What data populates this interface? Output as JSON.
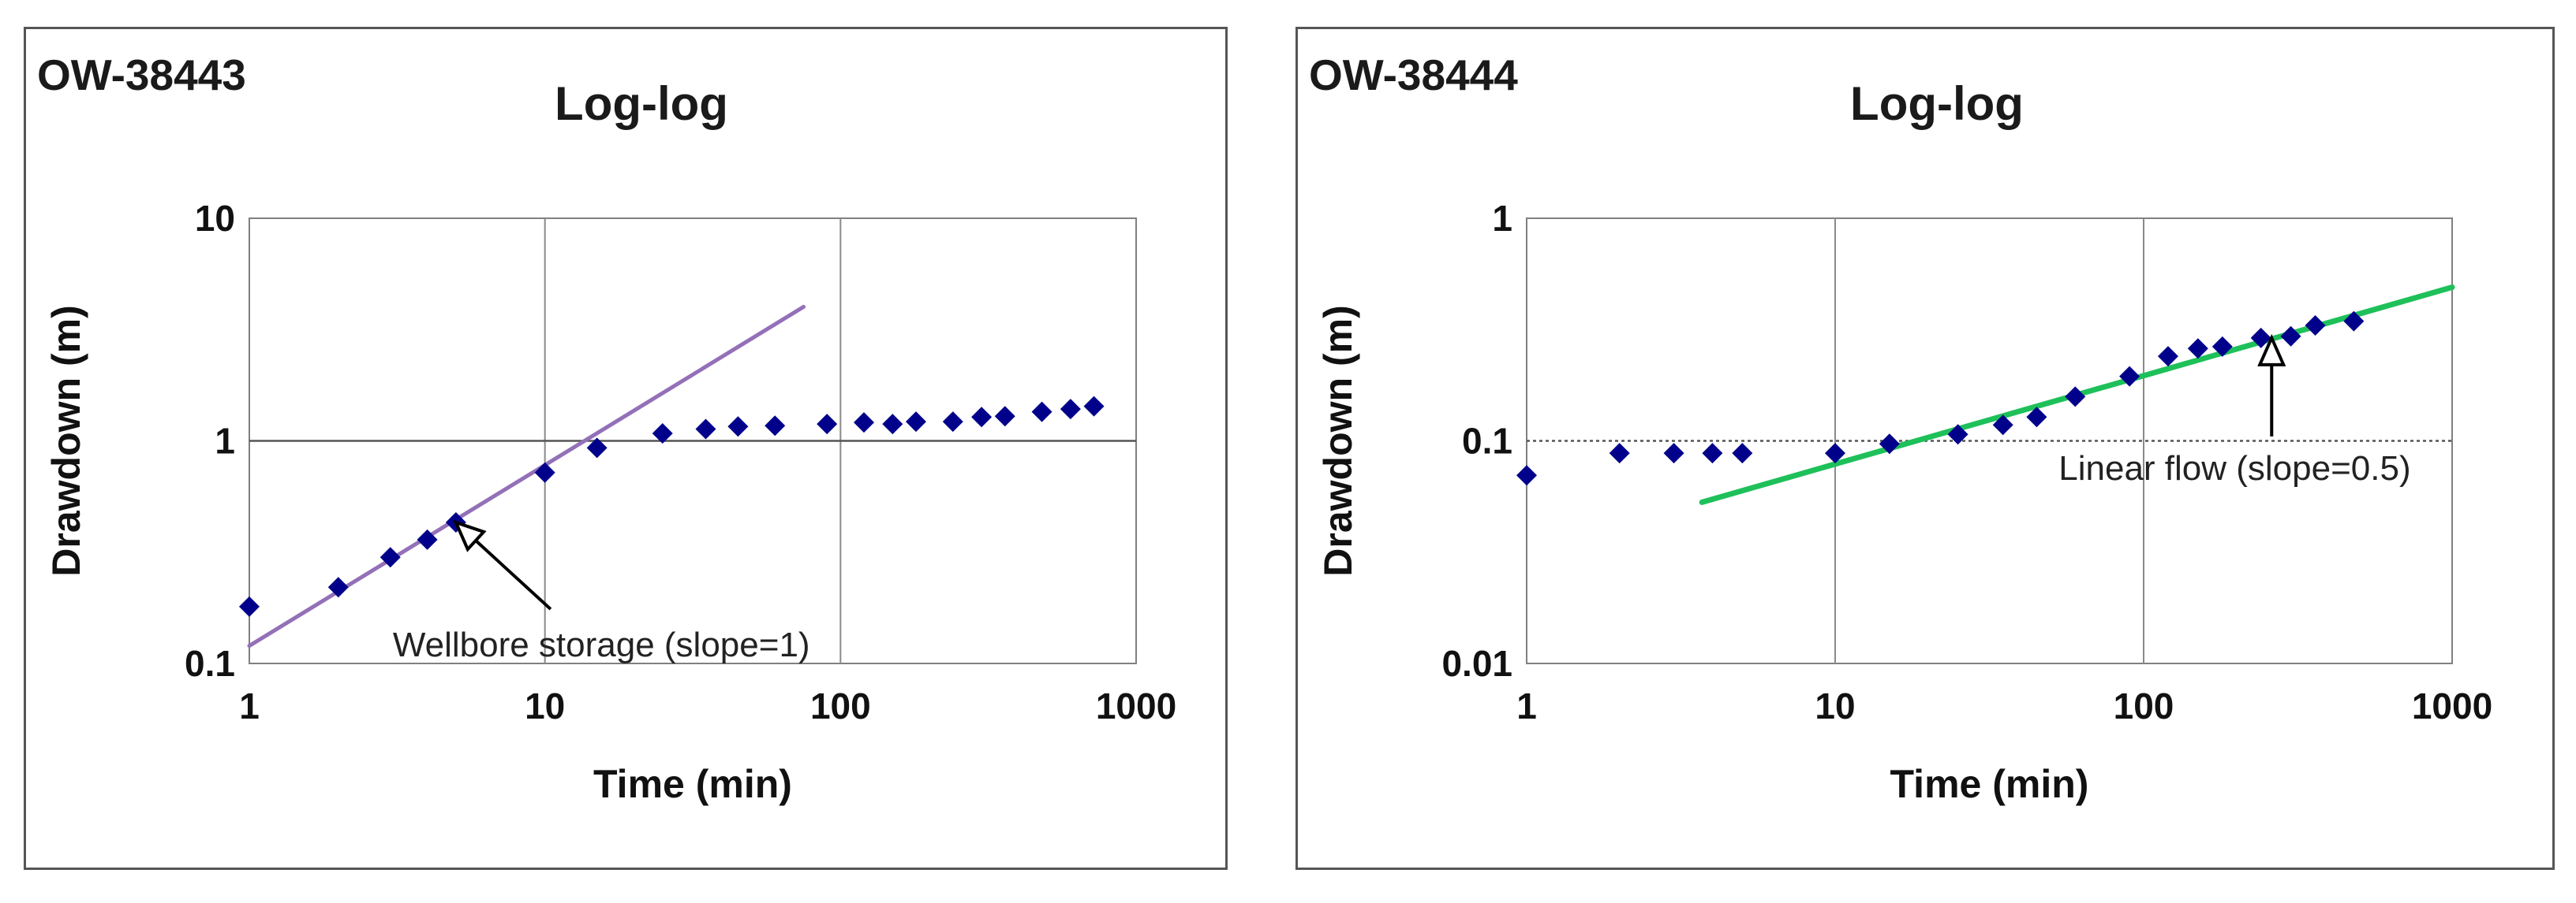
{
  "chart_data": [
    {
      "type": "scatter",
      "corner_label": "OW-38443",
      "title": "Log-log",
      "xlabel": "Time (min)",
      "ylabel": "Drawdown (m)",
      "xscale": "log",
      "yscale": "log",
      "xlim": [
        1,
        1000
      ],
      "ylim": [
        0.1,
        10
      ],
      "xticks": [
        "1",
        "10",
        "100",
        "1000"
      ],
      "yticks": [
        "0.1",
        "1",
        "10"
      ],
      "grid": true,
      "marker_color": "#00008b",
      "series": [
        {
          "x": [
            1,
            2,
            3,
            4,
            5,
            10,
            15,
            25,
            35,
            45,
            60,
            90,
            120,
            150,
            180,
            240,
            300,
            360,
            480,
            600,
            720
          ],
          "y": [
            0.18,
            0.22,
            0.3,
            0.36,
            0.43,
            0.72,
            0.93,
            1.08,
            1.13,
            1.16,
            1.17,
            1.19,
            1.21,
            1.19,
            1.22,
            1.22,
            1.28,
            1.29,
            1.35,
            1.39,
            1.43
          ]
        }
      ],
      "fit_line": {
        "color": "#9370b8",
        "x": [
          1,
          75
        ],
        "y": [
          0.12,
          4.0
        ]
      },
      "annotation": {
        "text": "Wellbore storage (slope=1)",
        "x": 5,
        "y": 0.43
      }
    },
    {
      "type": "scatter",
      "corner_label": "OW-38444",
      "title": "Log-log",
      "xlabel": "Time (min)",
      "ylabel": "Drawdown (m)",
      "xscale": "log",
      "yscale": "log",
      "xlim": [
        1,
        1000
      ],
      "ylim": [
        0.01,
        1
      ],
      "xticks": [
        "1",
        "10",
        "100",
        "1000"
      ],
      "yticks": [
        "0.01",
        "0.1",
        "1"
      ],
      "grid": true,
      "marker_color": "#00008b",
      "series": [
        {
          "x": [
            1,
            2,
            3,
            4,
            5,
            10,
            15,
            25,
            35,
            45,
            60,
            90,
            120,
            150,
            180,
            240,
            300,
            360,
            480
          ],
          "y": [
            0.07,
            0.088,
            0.088,
            0.088,
            0.088,
            0.088,
            0.097,
            0.107,
            0.118,
            0.128,
            0.158,
            0.195,
            0.24,
            0.26,
            0.265,
            0.29,
            0.295,
            0.33,
            0.345
          ]
        }
      ],
      "fit_line": {
        "color": "#1ec05a",
        "x": [
          3.7,
          1000
        ],
        "y": [
          0.053,
          0.49
        ]
      },
      "annotation": {
        "text": "Linear flow (slope=0.5)",
        "x": 260,
        "y": 0.29
      }
    }
  ]
}
